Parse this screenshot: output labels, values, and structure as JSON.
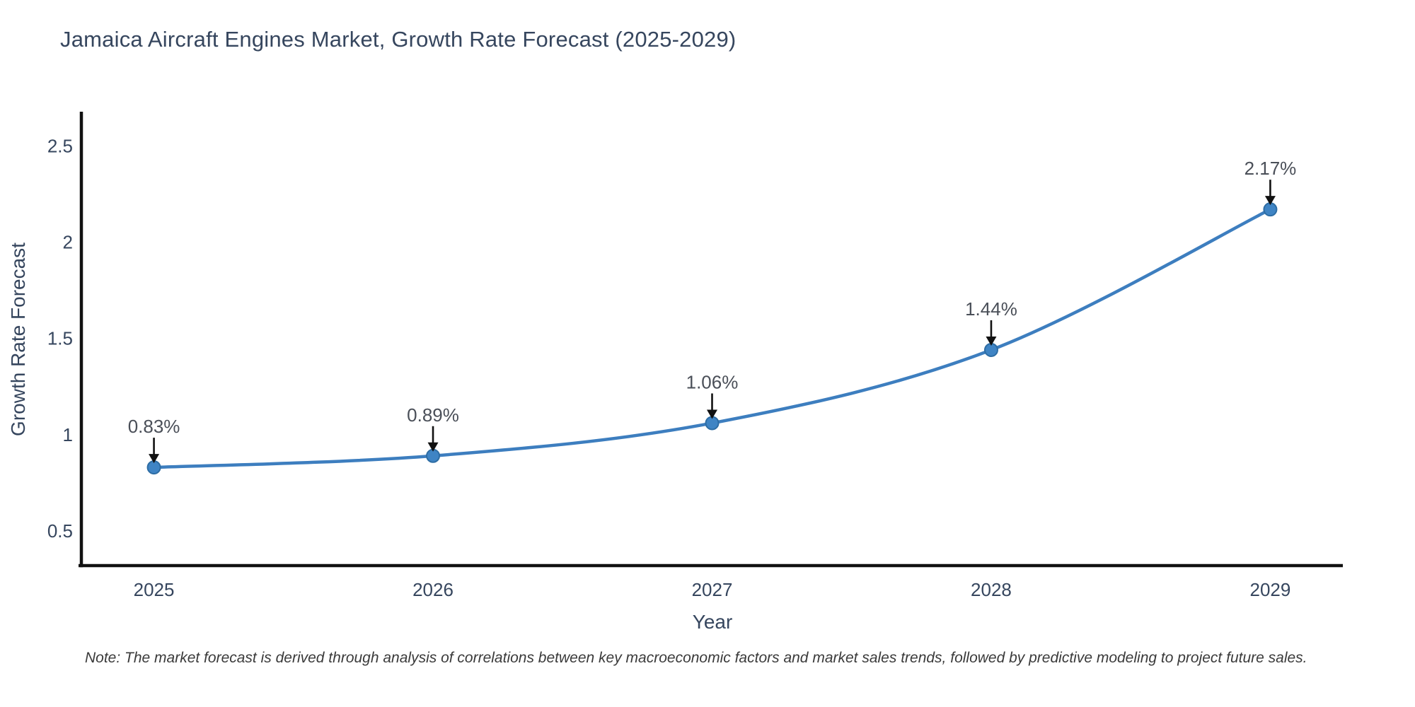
{
  "title": "Jamaica Aircraft Engines Market, Growth Rate Forecast (2025-2029)",
  "note": "Note: The market forecast is derived through analysis of correlations between key macroeconomic factors and market sales trends, followed by predictive modeling to project future sales.",
  "chart_data": {
    "type": "line",
    "title": "Jamaica Aircraft Engines Market, Growth Rate Forecast (2025-2029)",
    "xlabel": "Year",
    "ylabel": "Growth Rate Forecast",
    "x": [
      2025,
      2026,
      2027,
      2028,
      2029
    ],
    "values": [
      0.83,
      0.89,
      1.06,
      1.44,
      2.17
    ],
    "point_labels": [
      "0.83%",
      "0.89%",
      "1.06%",
      "1.44%",
      "2.17%"
    ],
    "xtick_labels": [
      "2025",
      "2026",
      "2027",
      "2028",
      "2029"
    ],
    "yticks": [
      0.5,
      1,
      1.5,
      2,
      2.5
    ],
    "ytick_labels": [
      "0.5",
      "1",
      "1.5",
      "2",
      "2.5"
    ],
    "xlim": [
      2024.74,
      2029.26
    ],
    "ylim": [
      0.32,
      2.67
    ],
    "grid": false,
    "legend": "none",
    "smooth_line": true,
    "colors": {
      "line": "#3d7ebf",
      "marker_fill": "#3f84c4",
      "marker_edge": "#2e6da4",
      "axis_spine": "#111111",
      "arrow": "#111111",
      "tick_text": "#36465e",
      "annotation_text": "#4a4f58",
      "background": "#ffffff"
    }
  }
}
